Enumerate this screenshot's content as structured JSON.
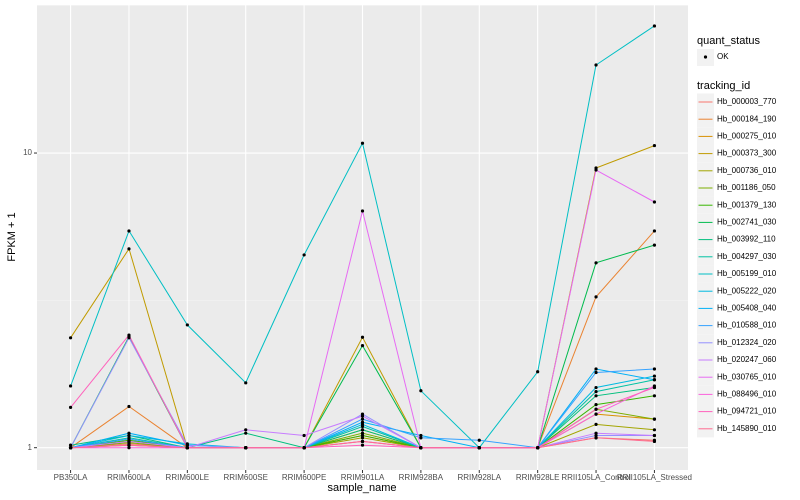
{
  "chart_data": {
    "type": "line",
    "x_label": "sample_name",
    "y_label": "FPKM + 1",
    "log_y": true,
    "grid": true,
    "legend_position": "right",
    "point_legend": {
      "title": "quant_status",
      "levels": [
        "OK"
      ]
    },
    "legend_title": "tracking_id",
    "categories": [
      "PB350LA",
      "RRIM600LA",
      "RRIM600LE",
      "RRIM600SE",
      "RRIM600PE",
      "RRIM901LA",
      "RRIM928BA",
      "RRIM928LA",
      "RRIM928LE",
      "RRII105LA_Control",
      "RRII105LA_Stressed"
    ],
    "ylim": [
      0.84,
      31.8
    ],
    "yticks": [
      1,
      10
    ],
    "series": [
      {
        "name": "Hb_000003_770",
        "color": "#F8766D",
        "values": [
          1,
          1.03,
          1,
          1,
          1,
          1.05,
          1,
          1,
          1,
          1.08,
          1.06
        ]
      },
      {
        "name": "Hb_000184_190",
        "color": "#EA8331",
        "values": [
          1,
          1.38,
          1,
          1,
          1,
          1.1,
          1,
          1,
          1,
          3.25,
          5.44
        ]
      },
      {
        "name": "Hb_000275_010",
        "color": "#D89000",
        "values": [
          1,
          1.05,
          1,
          1,
          1,
          1.15,
          1,
          1,
          1,
          1.3,
          1.25
        ]
      },
      {
        "name": "Hb_000373_300",
        "color": "#C09B00",
        "values": [
          2.36,
          4.73,
          1,
          1,
          1,
          2.37,
          1,
          1,
          1,
          8.9,
          10.6
        ]
      },
      {
        "name": "Hb_000736_010",
        "color": "#A3A500",
        "values": [
          1,
          1.02,
          1,
          1,
          1,
          1.08,
          1,
          1,
          1,
          1.2,
          1.15
        ]
      },
      {
        "name": "Hb_001186_050",
        "color": "#7CAE00",
        "values": [
          1,
          1.04,
          1,
          1,
          1,
          1.12,
          1,
          1,
          1,
          1.35,
          1.25
        ]
      },
      {
        "name": "Hb_001379_130",
        "color": "#39B600",
        "values": [
          1,
          1.06,
          1,
          1,
          1,
          1.1,
          1,
          1,
          1,
          1.4,
          1.5
        ]
      },
      {
        "name": "Hb_002741_030",
        "color": "#00BB4E",
        "values": [
          1,
          2.38,
          1,
          1,
          1,
          2.22,
          1,
          1,
          1,
          4.24,
          4.87
        ]
      },
      {
        "name": "Hb_003992_110",
        "color": "#00BF7D",
        "values": [
          1.02,
          1.1,
          1,
          1.12,
          1,
          1.15,
          1,
          1,
          1,
          1.5,
          1.6
        ]
      },
      {
        "name": "Hb_004297_030",
        "color": "#00C1A3",
        "values": [
          1,
          1.08,
          1,
          1,
          1,
          1.18,
          1,
          1,
          1,
          1.55,
          1.7
        ]
      },
      {
        "name": "Hb_005199_010",
        "color": "#00BFC4",
        "values": [
          1.62,
          5.44,
          2.61,
          1.66,
          4.51,
          10.8,
          1.56,
          1,
          1.81,
          19.9,
          27.0
        ]
      },
      {
        "name": "Hb_005222_020",
        "color": "#00BAE0",
        "values": [
          1,
          1.1,
          1.03,
          1,
          1,
          1.2,
          1,
          1,
          1,
          1.6,
          1.75
        ]
      },
      {
        "name": "Hb_005408_040",
        "color": "#00B0F6",
        "values": [
          1,
          1.12,
          1.02,
          1,
          1,
          1.22,
          1.1,
          1,
          1,
          1.85,
          1.7
        ]
      },
      {
        "name": "Hb_010588_010",
        "color": "#35A2FF",
        "values": [
          1,
          1.07,
          1,
          1,
          1,
          1.25,
          1.08,
          1.06,
          1,
          1.8,
          1.85
        ]
      },
      {
        "name": "Hb_012324_020",
        "color": "#9590FF",
        "values": [
          1,
          2.36,
          1.02,
          1,
          1,
          1.3,
          1,
          1,
          1,
          1.1,
          1.1
        ]
      },
      {
        "name": "Hb_020247_060",
        "color": "#C77CFF",
        "values": [
          1,
          1.05,
          1,
          1.15,
          1.1,
          1.28,
          1,
          1,
          1,
          1.12,
          1.1
        ]
      },
      {
        "name": "Hb_030765_010",
        "color": "#E76BF3",
        "values": [
          1,
          1.02,
          1,
          1,
          1,
          6.36,
          1,
          1,
          1,
          8.76,
          6.82
        ]
      },
      {
        "name": "Hb_088496_010",
        "color": "#FA62DB",
        "values": [
          1,
          1,
          1,
          1,
          1,
          1.05,
          1,
          1,
          1,
          1.3,
          1.62
        ]
      },
      {
        "name": "Hb_094721_010",
        "color": "#FF62BC",
        "values": [
          1.37,
          2.41,
          1,
          1,
          1,
          1.02,
          1,
          1,
          1,
          1.35,
          1.6
        ]
      },
      {
        "name": "Hb_145890_010",
        "color": "#FF6C91",
        "values": [
          1,
          1.02,
          1,
          1,
          1,
          1.05,
          1,
          1,
          1,
          1.08,
          1.05
        ]
      }
    ]
  }
}
